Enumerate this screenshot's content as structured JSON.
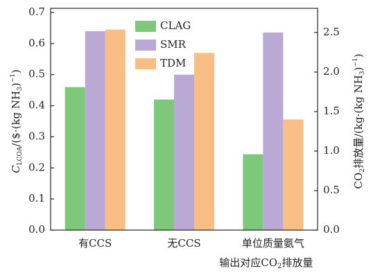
{
  "chart_data": {
    "type": "bar",
    "categories": [
      "有CCS",
      "无CCS",
      [
        "单位质量氨气",
        "输出对应CO",
        "2",
        "排放量"
      ]
    ],
    "category_axis": [
      "y",
      "y",
      "y2"
    ],
    "series": [
      {
        "name": "CLAG",
        "color": "#7dc87a",
        "values": [
          0.46,
          0.42,
          0.96
        ]
      },
      {
        "name": "SMR",
        "color": "#b9a9d4",
        "values": [
          0.64,
          0.5,
          2.5
        ]
      },
      {
        "name": "TDM",
        "color": "#f9bd86",
        "values": [
          0.645,
          0.57,
          1.4
        ]
      }
    ],
    "ylabel": [
      "C",
      "LCOA",
      "/($·(kg NH",
      "3",
      ")",
      "−1",
      ")"
    ],
    "y2label": [
      "CO",
      "2",
      "排放量/(kg·(kg NH",
      "3",
      ")",
      "−1",
      ")"
    ],
    "ylim": [
      0,
      0.7
    ],
    "yticks": [
      {
        "value": 0,
        "label": "0.0"
      },
      0.1,
      0.2,
      0.3,
      0.4,
      0.5,
      0.6,
      0.7
    ],
    "y2lim": [
      0,
      2.754
    ],
    "y2ticks": [
      {
        "value": 0,
        "label": "0.0"
      },
      0.5,
      {
        "value": 1,
        "label": "1.0"
      },
      1.5,
      {
        "value": 2,
        "label": "2.0"
      },
      2.5
    ],
    "legend": "upper left"
  }
}
